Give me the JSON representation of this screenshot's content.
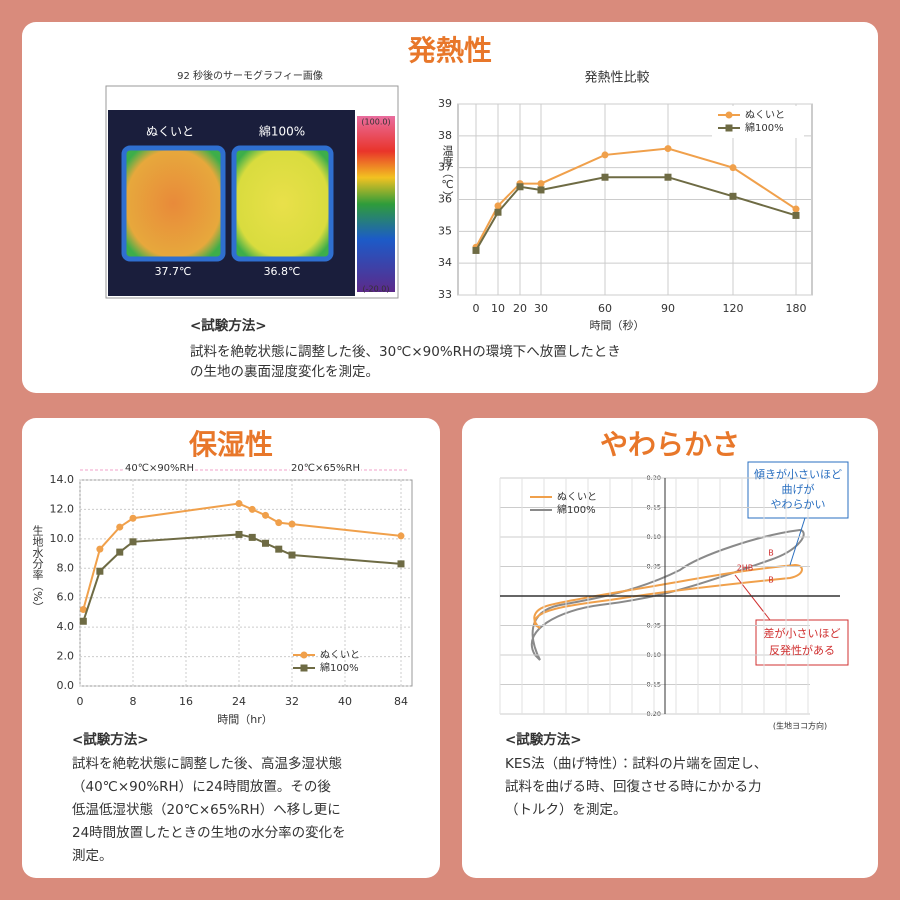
{
  "sections": [
    {
      "title": "発熱性",
      "method_heading": "<試験方法>",
      "method": [
        "試料を絶乾状態に調整した後、30℃×90%RHの環境下へ放置したとき",
        "の生地の裏面湿度変化を測定。"
      ]
    },
    {
      "title": "保湿性",
      "method_heading": "<試験方法>",
      "method": [
        "試料を絶乾状態に調整した後、高温多湿状態",
        "（40℃×90%RH）に24時間放置。その後",
        "低温低湿状態（20℃×65%RH）へ移し更に",
        "24時間放置したときの生地の水分率の変化を",
        "測定。"
      ]
    },
    {
      "title": "やわらかさ",
      "method_heading": "<試験方法>",
      "method": [
        "KES法（曲げ特性）：試料の片端を固定し、",
        "試料を曲げる時、回復させる時にかかる力",
        "（トルク）を測定。"
      ]
    }
  ],
  "thermo": {
    "caption": "92 秒後のサーモグラフィー画像",
    "labels": [
      "ぬくいと",
      "綿100%"
    ],
    "temps": [
      "37.7℃",
      "36.8℃"
    ],
    "scale_top": "(100.0)",
    "scale_bottom": "(-20.0)"
  },
  "chart_data": [
    {
      "type": "line",
      "title": "発熱性比較",
      "x_label": "時間（秒）",
      "y_label": "温度（℃）",
      "categories": [
        "0",
        "10",
        "20",
        "30",
        "60",
        "90",
        "120",
        "180"
      ],
      "ylim": [
        33,
        39
      ],
      "yticks": [
        33,
        34,
        35,
        36,
        37,
        38,
        39
      ],
      "grid": true,
      "legend": "upper right",
      "series": [
        {
          "name": "ぬくいと",
          "color": "#f0a04b",
          "values": [
            34.5,
            35.8,
            36.5,
            36.5,
            37.4,
            37.6,
            37.0,
            35.7
          ]
        },
        {
          "name": "綿100%",
          "color": "#6e6b44",
          "values": [
            34.4,
            35.6,
            36.4,
            36.3,
            36.7,
            36.7,
            36.1,
            35.5
          ]
        }
      ]
    },
    {
      "type": "line",
      "x_label": "時間（hr）",
      "y_label": "生地水分率（%）",
      "x": [
        0.5,
        3,
        6,
        8,
        24,
        26,
        28,
        30,
        32,
        84
      ],
      "xlim": [
        0,
        84
      ],
      "xticks": [
        0,
        8,
        16,
        24,
        32,
        40,
        84
      ],
      "ylim": [
        0,
        14
      ],
      "yticks": [
        {
          "value": 0,
          "label": "0.0"
        },
        {
          "value": 2,
          "label": "2.0"
        },
        {
          "value": 4,
          "label": "4.0"
        },
        {
          "value": 6,
          "label": "6.0"
        },
        {
          "value": 8,
          "label": "8.0"
        },
        {
          "value": 10,
          "label": "10.0"
        },
        {
          "value": 12,
          "label": "12.0"
        },
        {
          "value": 14,
          "label": "14.0"
        }
      ],
      "grid": true,
      "legend": "lower right",
      "annotations": [
        "40℃×90%RH",
        "20℃×65%RH"
      ],
      "series": [
        {
          "name": "ぬくいと",
          "color": "#f0a04b",
          "values": [
            5.2,
            9.3,
            10.8,
            11.4,
            12.4,
            12.0,
            11.6,
            11.1,
            11.0,
            10.2
          ]
        },
        {
          "name": "綿100%",
          "color": "#6e6b44",
          "values": [
            4.4,
            7.8,
            9.1,
            9.8,
            10.3,
            10.1,
            9.7,
            9.3,
            8.9,
            8.3
          ]
        }
      ]
    },
    {
      "type": "line",
      "ylim": [
        -0.2,
        0.2
      ],
      "yticks": [
        {
          "value": 0.2,
          "label": "0.20"
        },
        {
          "value": 0.15,
          "label": "0.15"
        },
        {
          "value": 0.1,
          "label": "0.10"
        },
        {
          "value": 0.05,
          "label": "0.05"
        },
        {
          "value": -0.05,
          "label": "-0.05"
        },
        {
          "value": -0.1,
          "label": "-0.10"
        },
        {
          "value": -0.15,
          "label": "-0.15"
        },
        {
          "value": -0.2,
          "label": "-0.20"
        }
      ],
      "grid": true,
      "legend": "upper left",
      "note": "(生地ヨコ方向)",
      "annotations": [
        "傾きが小さいほど",
        "曲げが",
        "やわらかい",
        "差が小さいほど",
        "反発性がある",
        "2HB",
        "B"
      ],
      "series": [
        {
          "name": "ぬくいと",
          "color": "#f0a04b"
        },
        {
          "name": "綿100%",
          "color": "#8a8a8a"
        }
      ]
    }
  ]
}
